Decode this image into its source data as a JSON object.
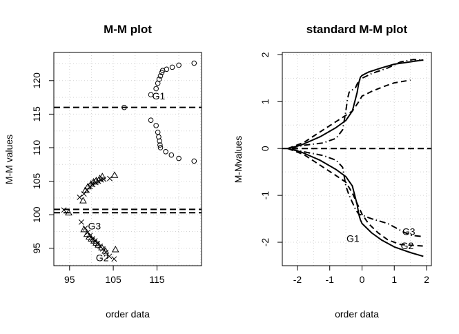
{
  "chart_data": [
    {
      "type": "scatter",
      "title": "M-M plot",
      "xlabel": "order data",
      "ylabel": "M-M values",
      "xlim": [
        91.4,
        125.2
      ],
      "ylim": [
        92.4,
        124.2
      ],
      "xticks": [
        95,
        105,
        115
      ],
      "yticks": [
        95,
        100,
        105,
        110,
        115,
        120
      ],
      "grid": true,
      "hlines": [
        116,
        100.8,
        100.3
      ],
      "series": [
        {
          "marker": "circle",
          "points": [
            [
              113.6,
              117.9
            ],
            [
              114.8,
              118.8
            ],
            [
              115.2,
              119.6
            ],
            [
              115.5,
              120.2
            ],
            [
              115.8,
              120.7
            ],
            [
              116.1,
              121.2
            ],
            [
              116.3,
              121.5
            ],
            [
              117.2,
              121.7
            ],
            [
              118.5,
              122.0
            ],
            [
              120.0,
              122.3
            ],
            [
              123.5,
              122.6
            ],
            [
              107.5,
              116.0
            ],
            [
              113.6,
              114.1
            ],
            [
              114.8,
              113.3
            ],
            [
              115.2,
              112.3
            ],
            [
              115.4,
              111.6
            ],
            [
              115.6,
              111.0
            ],
            [
              115.7,
              110.4
            ],
            [
              115.8,
              110.0
            ],
            [
              117.0,
              109.4
            ],
            [
              118.3,
              108.9
            ],
            [
              120.0,
              108.4
            ],
            [
              123.5,
              108.0
            ]
          ]
        },
        {
          "marker": "triangle",
          "points": [
            [
              94.8,
              100.3
            ],
            [
              98.1,
              102.1
            ],
            [
              98.6,
              103.6
            ],
            [
              99.2,
              104.2
            ],
            [
              99.9,
              104.6
            ],
            [
              100.5,
              104.9
            ],
            [
              101.1,
              105.1
            ],
            [
              101.9,
              105.4
            ],
            [
              102.5,
              105.7
            ],
            [
              105.3,
              105.9
            ],
            [
              98.3,
              97.8
            ],
            [
              99.0,
              97.1
            ],
            [
              99.5,
              96.7
            ],
            [
              100.0,
              96.4
            ],
            [
              100.6,
              96.1
            ],
            [
              101.1,
              95.8
            ],
            [
              101.6,
              95.5
            ],
            [
              102.4,
              95.1
            ],
            [
              103.2,
              94.6
            ],
            [
              105.5,
              94.8
            ]
          ]
        },
        {
          "marker": "cross",
          "points": [
            [
              93.7,
              100.7
            ],
            [
              97.3,
              102.6
            ],
            [
              98.3,
              103.1
            ],
            [
              99.0,
              103.7
            ],
            [
              99.7,
              104.2
            ],
            [
              100.3,
              104.5
            ],
            [
              101.0,
              104.8
            ],
            [
              101.6,
              105.0
            ],
            [
              102.2,
              105.2
            ],
            [
              102.8,
              105.3
            ],
            [
              104.2,
              105.4
            ],
            [
              97.7,
              98.9
            ],
            [
              98.6,
              98.0
            ],
            [
              99.2,
              97.4
            ],
            [
              99.7,
              96.9
            ],
            [
              100.2,
              96.4
            ],
            [
              100.8,
              96.1
            ],
            [
              101.4,
              95.7
            ],
            [
              102.0,
              95.3
            ],
            [
              102.6,
              94.9
            ],
            [
              103.3,
              94.4
            ],
            [
              104.1,
              93.8
            ],
            [
              105.2,
              93.4
            ]
          ]
        }
      ],
      "annotations": [
        {
          "text": "G1",
          "x": 115.4,
          "y": 117.7
        },
        {
          "text": "G3",
          "x": 100.7,
          "y": 98.3
        },
        {
          "text": "G2",
          "x": 102.5,
          "y": 93.6
        }
      ]
    },
    {
      "type": "line",
      "title": "standard M-M plot",
      "xlabel": "order data",
      "ylabel": "M-Mvalues",
      "xlim": [
        -2.47,
        2.15
      ],
      "ylim": [
        -2.5,
        2.05
      ],
      "xticks": [
        -2,
        -1,
        0,
        1,
        2
      ],
      "yticks": [
        -2,
        -1,
        0,
        1,
        2
      ],
      "grid": true,
      "hlines": [
        0
      ],
      "series": [
        {
          "style": "solid",
          "points": [
            [
              -2.3,
              0
            ],
            [
              -1.9,
              0.07
            ],
            [
              -1.3,
              0.25
            ],
            [
              -0.8,
              0.45
            ],
            [
              -0.5,
              0.6
            ],
            [
              -0.3,
              0.8
            ],
            [
              -0.15,
              1.2
            ],
            [
              -0.1,
              1.4
            ],
            [
              -0.05,
              1.52
            ],
            [
              0.0,
              1.56
            ],
            [
              0.2,
              1.63
            ],
            [
              0.6,
              1.72
            ],
            [
              1.0,
              1.8
            ],
            [
              1.5,
              1.85
            ],
            [
              1.9,
              1.89
            ]
          ]
        },
        {
          "style": "dashed",
          "points": [
            [
              -2.3,
              0
            ],
            [
              -1.8,
              0.13
            ],
            [
              -1.2,
              0.4
            ],
            [
              -0.7,
              0.62
            ],
            [
              -0.3,
              0.8
            ],
            [
              -0.1,
              1.0
            ],
            [
              0.0,
              1.12
            ],
            [
              0.1,
              1.15
            ],
            [
              0.3,
              1.22
            ],
            [
              0.7,
              1.33
            ],
            [
              1.0,
              1.4
            ],
            [
              1.5,
              1.46
            ]
          ]
        },
        {
          "style": "dotdash",
          "points": [
            [
              -2.3,
              0
            ],
            [
              -1.8,
              0.07
            ],
            [
              -1.2,
              0.12
            ],
            [
              -0.8,
              0.22
            ],
            [
              -0.6,
              0.4
            ],
            [
              -0.5,
              0.8
            ],
            [
              -0.45,
              1.05
            ],
            [
              -0.4,
              1.2
            ],
            [
              -0.3,
              1.25
            ],
            [
              -0.2,
              1.3
            ],
            [
              -0.1,
              1.45
            ],
            [
              0.0,
              1.5
            ],
            [
              0.3,
              1.6
            ],
            [
              0.8,
              1.72
            ],
            [
              1.2,
              1.85
            ],
            [
              1.6,
              1.9
            ],
            [
              1.9,
              1.88
            ]
          ]
        },
        {
          "style": "solid",
          "points": [
            [
              -2.3,
              0
            ],
            [
              -1.9,
              -0.07
            ],
            [
              -1.3,
              -0.25
            ],
            [
              -0.8,
              -0.45
            ],
            [
              -0.5,
              -0.6
            ],
            [
              -0.3,
              -0.8
            ],
            [
              -0.15,
              -1.2
            ],
            [
              -0.1,
              -1.4
            ],
            [
              -0.05,
              -1.52
            ],
            [
              0.0,
              -1.6
            ],
            [
              0.3,
              -1.8
            ],
            [
              0.6,
              -1.95
            ],
            [
              1.0,
              -2.1
            ],
            [
              1.5,
              -2.22
            ],
            [
              1.9,
              -2.3
            ]
          ]
        },
        {
          "style": "dashed",
          "points": [
            [
              -2.3,
              0
            ],
            [
              -1.8,
              -0.13
            ],
            [
              -1.2,
              -0.4
            ],
            [
              -0.8,
              -0.58
            ],
            [
              -0.5,
              -0.72
            ],
            [
              -0.3,
              -0.95
            ],
            [
              -0.2,
              -1.1
            ],
            [
              -0.1,
              -1.25
            ],
            [
              0.0,
              -1.4
            ],
            [
              0.2,
              -1.6
            ],
            [
              0.5,
              -1.8
            ],
            [
              0.8,
              -1.95
            ],
            [
              1.2,
              -2.05
            ],
            [
              1.9,
              -2.08
            ]
          ]
        },
        {
          "style": "dotdash",
          "points": [
            [
              -2.3,
              0
            ],
            [
              -1.8,
              -0.07
            ],
            [
              -1.2,
              -0.15
            ],
            [
              -0.8,
              -0.25
            ],
            [
              -0.6,
              -0.4
            ],
            [
              -0.5,
              -0.8
            ],
            [
              -0.4,
              -1.0
            ],
            [
              -0.3,
              -1.15
            ],
            [
              -0.2,
              -1.3
            ],
            [
              -0.1,
              -1.4
            ],
            [
              0.0,
              -1.42
            ],
            [
              0.3,
              -1.5
            ],
            [
              0.8,
              -1.6
            ],
            [
              1.2,
              -1.75
            ],
            [
              1.5,
              -1.85
            ],
            [
              1.9,
              -1.88
            ]
          ]
        }
      ],
      "annotations": [
        {
          "text": "G1",
          "x": -0.28,
          "y": -1.92
        },
        {
          "text": "G3",
          "x": 1.45,
          "y": -1.77
        },
        {
          "text": "G2",
          "x": 1.4,
          "y": -2.07
        }
      ]
    }
  ]
}
